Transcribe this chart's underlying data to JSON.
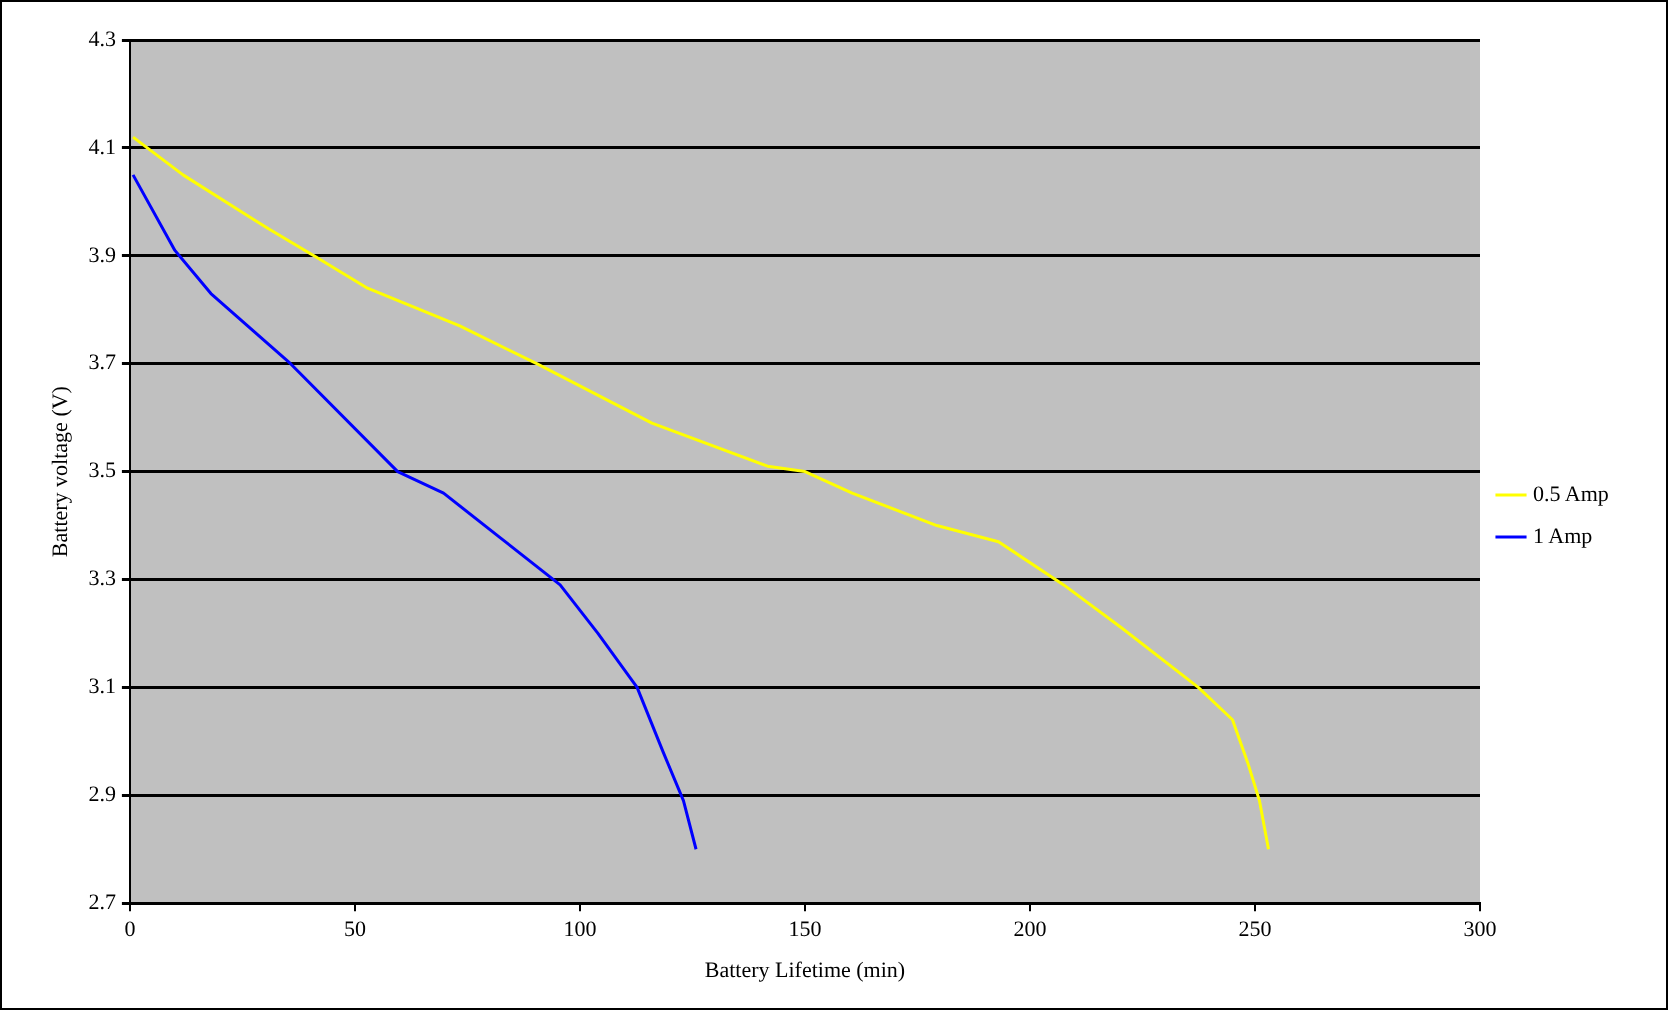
{
  "chart_data": {
    "type": "line",
    "xlabel": "Battery Lifetime (min)",
    "ylabel": "Battery voltage (V)",
    "xlim": [
      0,
      300
    ],
    "xticks": [
      0,
      50,
      100,
      150,
      200,
      250,
      300
    ],
    "ylim": [
      2.7,
      4.3
    ],
    "yticks": [
      2.7,
      2.9,
      3.1,
      3.3,
      3.5,
      3.7,
      3.9,
      4.1,
      4.3
    ],
    "grid": "y",
    "legend": "right",
    "marker": "none",
    "line_style": "solid",
    "series": [
      {
        "name": "0.5 Amp",
        "color": "#ffff00",
        "x": [
          0.7,
          11.8,
          30.8,
          40.9,
          52.8,
          73.3,
          90.4,
          116,
          141.7,
          150,
          160.5,
          179.3,
          193,
          207.5,
          220.4,
          237.4,
          245,
          248.4,
          251,
          253
        ],
        "values": [
          4.12,
          4.05,
          3.95,
          3.9,
          3.84,
          3.77,
          3.7,
          3.59,
          3.51,
          3.5,
          3.46,
          3.4,
          3.37,
          3.29,
          3.21,
          3.1,
          3.04,
          2.96,
          2.89,
          2.8
        ]
      },
      {
        "name": "1 Amp",
        "color": "#0000ff",
        "x": [
          0.7,
          10,
          18,
          35.7,
          59.5,
          69.7,
          81.9,
          95.6,
          104,
          112.7,
          118.5,
          123,
          125.8
        ],
        "values": [
          4.05,
          3.91,
          3.83,
          3.7,
          3.5,
          3.46,
          3.38,
          3.29,
          3.2,
          3.1,
          2.98,
          2.89,
          2.8
        ]
      }
    ]
  }
}
